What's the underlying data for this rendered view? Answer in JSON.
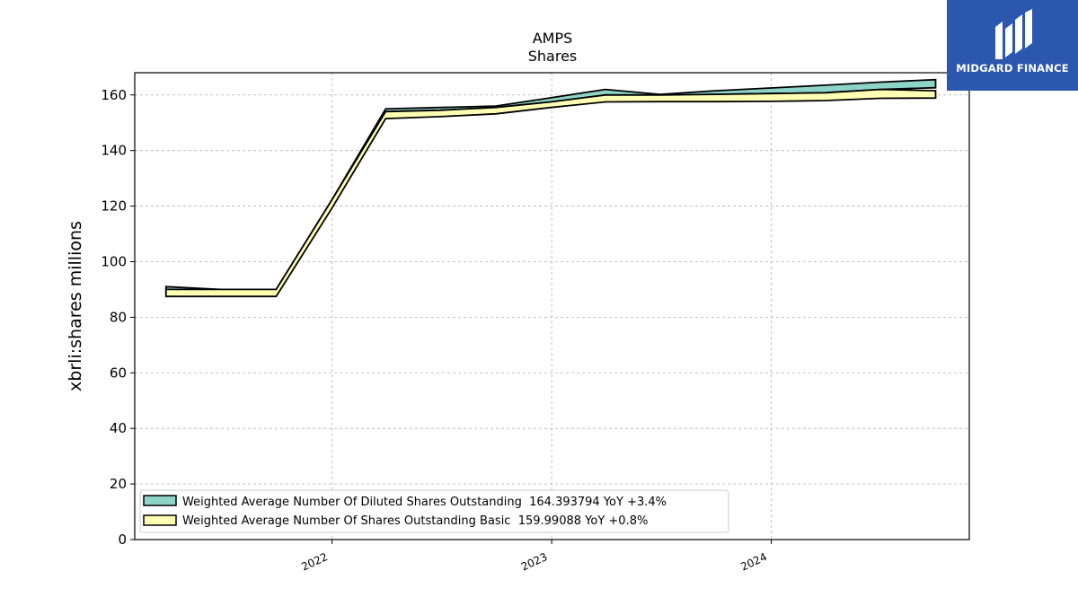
{
  "chart_data": {
    "type": "area",
    "title": "AMPS",
    "subtitle": "Shares",
    "xlabel": "",
    "ylabel": "xbrli:shares millions",
    "ylim": [
      0,
      168
    ],
    "yticks": [
      0,
      20,
      40,
      60,
      80,
      100,
      120,
      140,
      160
    ],
    "xticks": [
      {
        "label": "2022",
        "date": "2022-01-01"
      },
      {
        "label": "2023",
        "date": "2023-01-01"
      },
      {
        "label": "2024",
        "date": "2024-01-01"
      }
    ],
    "xlim": [
      "2021-02-07",
      "2024-11-25"
    ],
    "grid": true,
    "legend_position": "lower-left",
    "series": [
      {
        "name": "Weighted Average Number Of Diluted Shares Outstanding  164.393794 YoY +3.4%",
        "color": "#8dd3c7",
        "x": [
          "2021-03-31",
          "2021-06-30",
          "2021-09-30",
          "2021-12-31",
          "2022-03-31",
          "2022-06-30",
          "2022-09-30",
          "2022-12-31",
          "2023-03-31",
          "2023-06-30",
          "2023-09-30",
          "2023-12-31",
          "2024-03-31",
          "2024-06-30",
          "2024-09-30"
        ],
        "upper": [
          91.0,
          90.0,
          90.0,
          122.0,
          155.0,
          155.5,
          156.0,
          159.0,
          162.0,
          160.2,
          161.5,
          162.5,
          163.5,
          164.6,
          165.5
        ],
        "lower": [
          88.5,
          88.0,
          88.0,
          120.0,
          154.0,
          154.5,
          155.5,
          157.5,
          160.0,
          160.0,
          160.2,
          160.5,
          160.8,
          162.0,
          162.6
        ]
      },
      {
        "name": "Weighted Average Number Of Shares Outstanding Basic  159.99088 YoY +0.8%",
        "color": "#ffffb3",
        "x": [
          "2021-03-31",
          "2021-06-30",
          "2021-09-30",
          "2021-12-31",
          "2022-03-31",
          "2022-06-30",
          "2022-09-30",
          "2022-12-31",
          "2023-03-31",
          "2023-06-30",
          "2023-09-30",
          "2023-12-31",
          "2024-03-31",
          "2024-06-30",
          "2024-09-30"
        ],
        "upper": [
          90.0,
          90.0,
          90.0,
          122.0,
          154.0,
          154.5,
          155.5,
          157.5,
          160.0,
          160.0,
          160.2,
          160.5,
          160.8,
          162.0,
          161.5
        ],
        "lower": [
          87.5,
          87.5,
          87.5,
          119.0,
          151.5,
          152.2,
          153.2,
          155.5,
          157.5,
          157.6,
          157.6,
          157.7,
          158.0,
          158.8,
          158.9
        ]
      }
    ]
  },
  "logo": {
    "text": "MIDGARD FINANCE",
    "background": "#2b57ae"
  }
}
